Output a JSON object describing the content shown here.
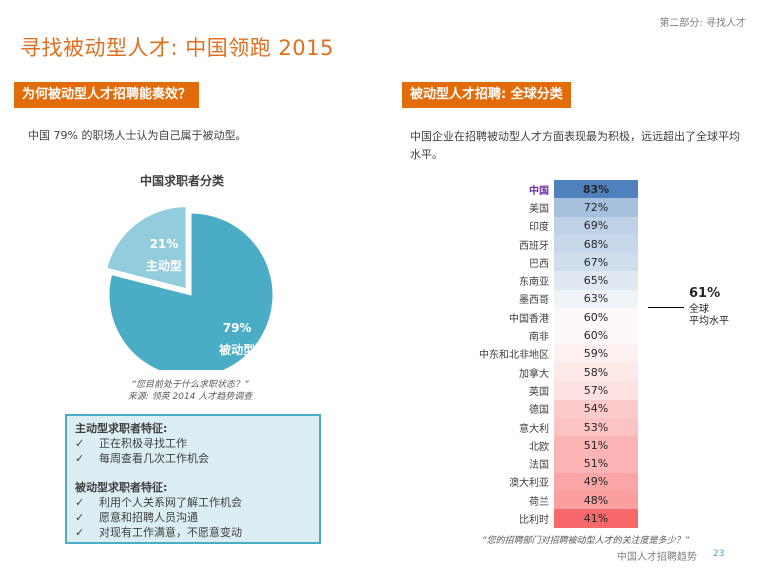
{
  "header": {
    "section_tag": "第二部分: 寻找人才",
    "title": "寻找被动型人才: 中国领跑 2015"
  },
  "left": {
    "heading": "为何被动型人才招聘能奏效？",
    "lead": "中国 79% 的职场人士认为自己属于被动型。",
    "quote": "“您目前处于什么求职状态？”",
    "source": "来源: 领英 2014 人才趋势调查",
    "traits": {
      "active_heading": "主动型求职者特征:",
      "active_items": [
        "正在积极寻找工作",
        "每周查看几次工作机会"
      ],
      "passive_heading": "被动型求职者特征:",
      "passive_items": [
        "利用个人关系网了解工作机会",
        "愿意和招聘人员沟通",
        "对现有工作满意，不愿意变动"
      ],
      "check_glyph": "✓"
    }
  },
  "right": {
    "heading": "被动型人才招聘: 全球分类",
    "lead": "中国企业在招聘被动型人才方面表现最为积极，远远超出了全球平均水平。",
    "average": {
      "value": "61%",
      "label_line1": "全球",
      "label_line2": "平均水平"
    },
    "quote": "“您的招聘部门对招聘被动型人才的关注度是多少？”"
  },
  "footer": {
    "text": "中国人才招聘趋势",
    "page": "23"
  },
  "chart_data": [
    {
      "type": "pie",
      "title": "中国求职者分类",
      "categories": [
        "被动型",
        "主动型"
      ],
      "values": [
        79,
        21
      ],
      "labels": [
        "79%",
        "21%"
      ],
      "colors": [
        "#4bacc6",
        "#93cddd"
      ],
      "exploded": "主动型"
    },
    {
      "type": "table",
      "title": "被动型人才招聘: 全球分类",
      "categories": [
        "中国",
        "美国",
        "印度",
        "西班牙",
        "巴西",
        "东南亚",
        "墨西哥",
        "中国香港",
        "南非",
        "中东和北非地区",
        "加拿大",
        "英国",
        "德国",
        "意大利",
        "北欧",
        "法国",
        "澳大利亚",
        "荷兰",
        "比利时"
      ],
      "values": [
        83,
        72,
        69,
        68,
        67,
        65,
        63,
        60,
        60,
        59,
        58,
        57,
        54,
        53,
        51,
        51,
        49,
        48,
        41
      ],
      "unit": "%",
      "highlight": "中国",
      "reference": {
        "label": "全球平均水平",
        "value": 61
      },
      "color_scale": {
        "high": "#4f81bd",
        "mid": "#ffffff",
        "low": "#f8696b"
      }
    }
  ]
}
